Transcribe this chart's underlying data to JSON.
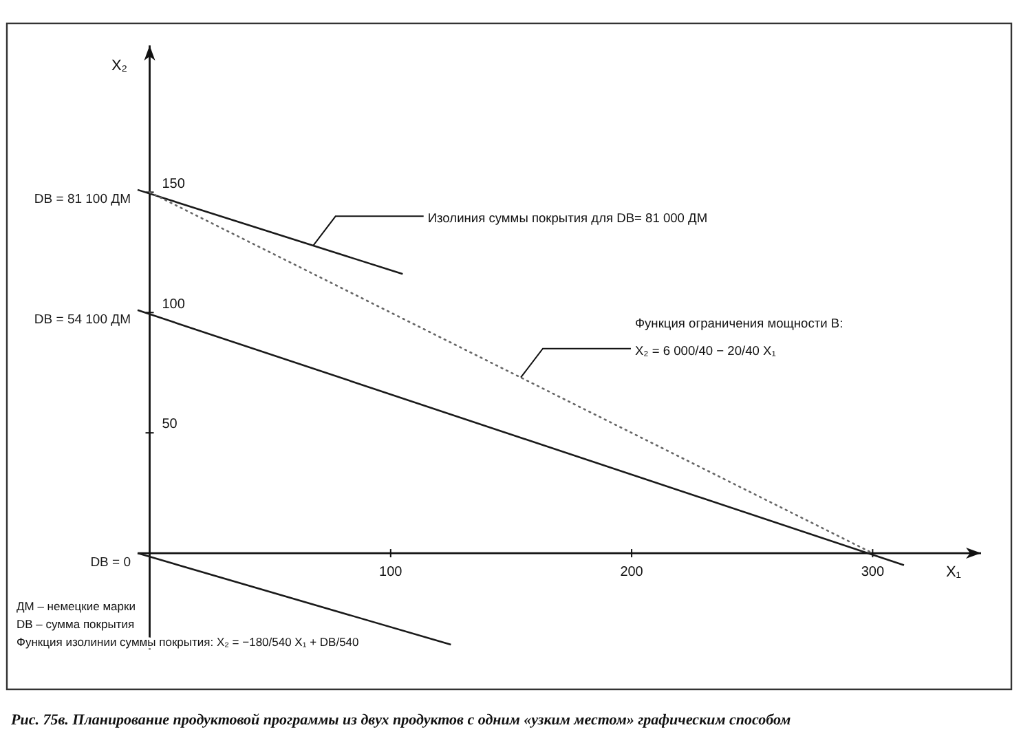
{
  "chart_data": {
    "type": "line",
    "xlabel": "X₁",
    "ylabel": "X₂",
    "xlim": [
      -5,
      345
    ],
    "ylim": [
      -40,
      211
    ],
    "xticks": [
      100,
      200,
      300
    ],
    "yticks": [
      50,
      100,
      150
    ],
    "series": [
      {
        "name": "DB = 81 100 ДМ",
        "color": "#1a1a1a",
        "x": [
          -5,
          105
        ],
        "values": [
          151,
          116
        ]
      },
      {
        "name": "DB = 54 100 ДМ",
        "color": "#1a1a1a",
        "x": [
          -5,
          313
        ],
        "values": [
          101,
          -5
        ]
      },
      {
        "name": "DB = 0",
        "color": "#1a1a1a",
        "x": [
          -5,
          125
        ],
        "values": [
          0,
          -38
        ]
      },
      {
        "color": "#666666",
        "x": [
          0,
          300
        ],
        "values": [
          150,
          0
        ],
        "line_style": "dotted"
      }
    ],
    "annotations": [
      {
        "text": "Изолиния суммы покрытия для DB= 81 000 ДМ",
        "x": 68,
        "y": 128
      },
      {
        "text": "Функция ограничения мощности B:\nX₂ = 6 000/40 − 20/40 X₁",
        "x": 154,
        "y": 73
      },
      "ДМ – немецкие марки",
      "DB – сумма покрытия",
      "Функция изолинии суммы покрытия: X₂ = −180/540 X₁ + DB/540",
      "Рис. 75в. Планирование продуктовой программы из двух продуктов с одним «узким местом» графическим способом"
    ]
  }
}
